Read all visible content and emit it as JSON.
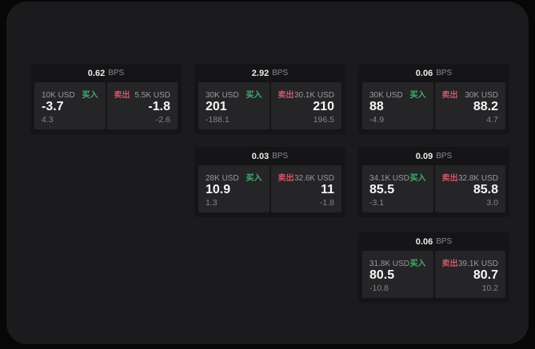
{
  "page": {
    "background": "#070708",
    "panel_background": "#1b1b1d",
    "card_background": "#151517",
    "side_background": "#252528"
  },
  "labels": {
    "bps_suffix": "BPS",
    "buy": "买入",
    "sell": "卖出"
  },
  "colors": {
    "buy": "#43b06a",
    "sell": "#d15666",
    "value_text": "#f5f5f5",
    "muted_text": "#9a9a9e"
  },
  "cards": [
    {
      "bps": "0.62",
      "row": 0,
      "col": 0,
      "buy": {
        "notional": "10K USD",
        "price": "-3.7",
        "sub": "4.3"
      },
      "sell": {
        "notional": "5.5K USD",
        "price": "-1.8",
        "sub": "-2.6"
      }
    },
    {
      "bps": "2.92",
      "row": 0,
      "col": 1,
      "buy": {
        "notional": "30K USD",
        "price": "201",
        "sub": "-188.1"
      },
      "sell": {
        "notional": "30.1K USD",
        "price": "210",
        "sub": "196.5"
      }
    },
    {
      "bps": "0.06",
      "row": 0,
      "col": 2,
      "buy": {
        "notional": "30K USD",
        "price": "88",
        "sub": "-4.9"
      },
      "sell": {
        "notional": "30K USD",
        "price": "88.2",
        "sub": "4.7"
      }
    },
    {
      "bps": "0.03",
      "row": 1,
      "col": 1,
      "buy": {
        "notional": "28K USD",
        "price": "10.9",
        "sub": "1.3"
      },
      "sell": {
        "notional": "32.6K USD",
        "price": "11",
        "sub": "-1.8"
      }
    },
    {
      "bps": "0.09",
      "row": 1,
      "col": 2,
      "buy": {
        "notional": "34.1K USD",
        "price": "85.5",
        "sub": "-3.1"
      },
      "sell": {
        "notional": "32.8K USD",
        "price": "85.8",
        "sub": "3.0"
      }
    },
    {
      "bps": "0.06",
      "row": 2,
      "col": 2,
      "buy": {
        "notional": "31.8K USD",
        "price": "80.5",
        "sub": "-10.8"
      },
      "sell": {
        "notional": "39.1K USD",
        "price": "80.7",
        "sub": "10.2"
      }
    }
  ]
}
